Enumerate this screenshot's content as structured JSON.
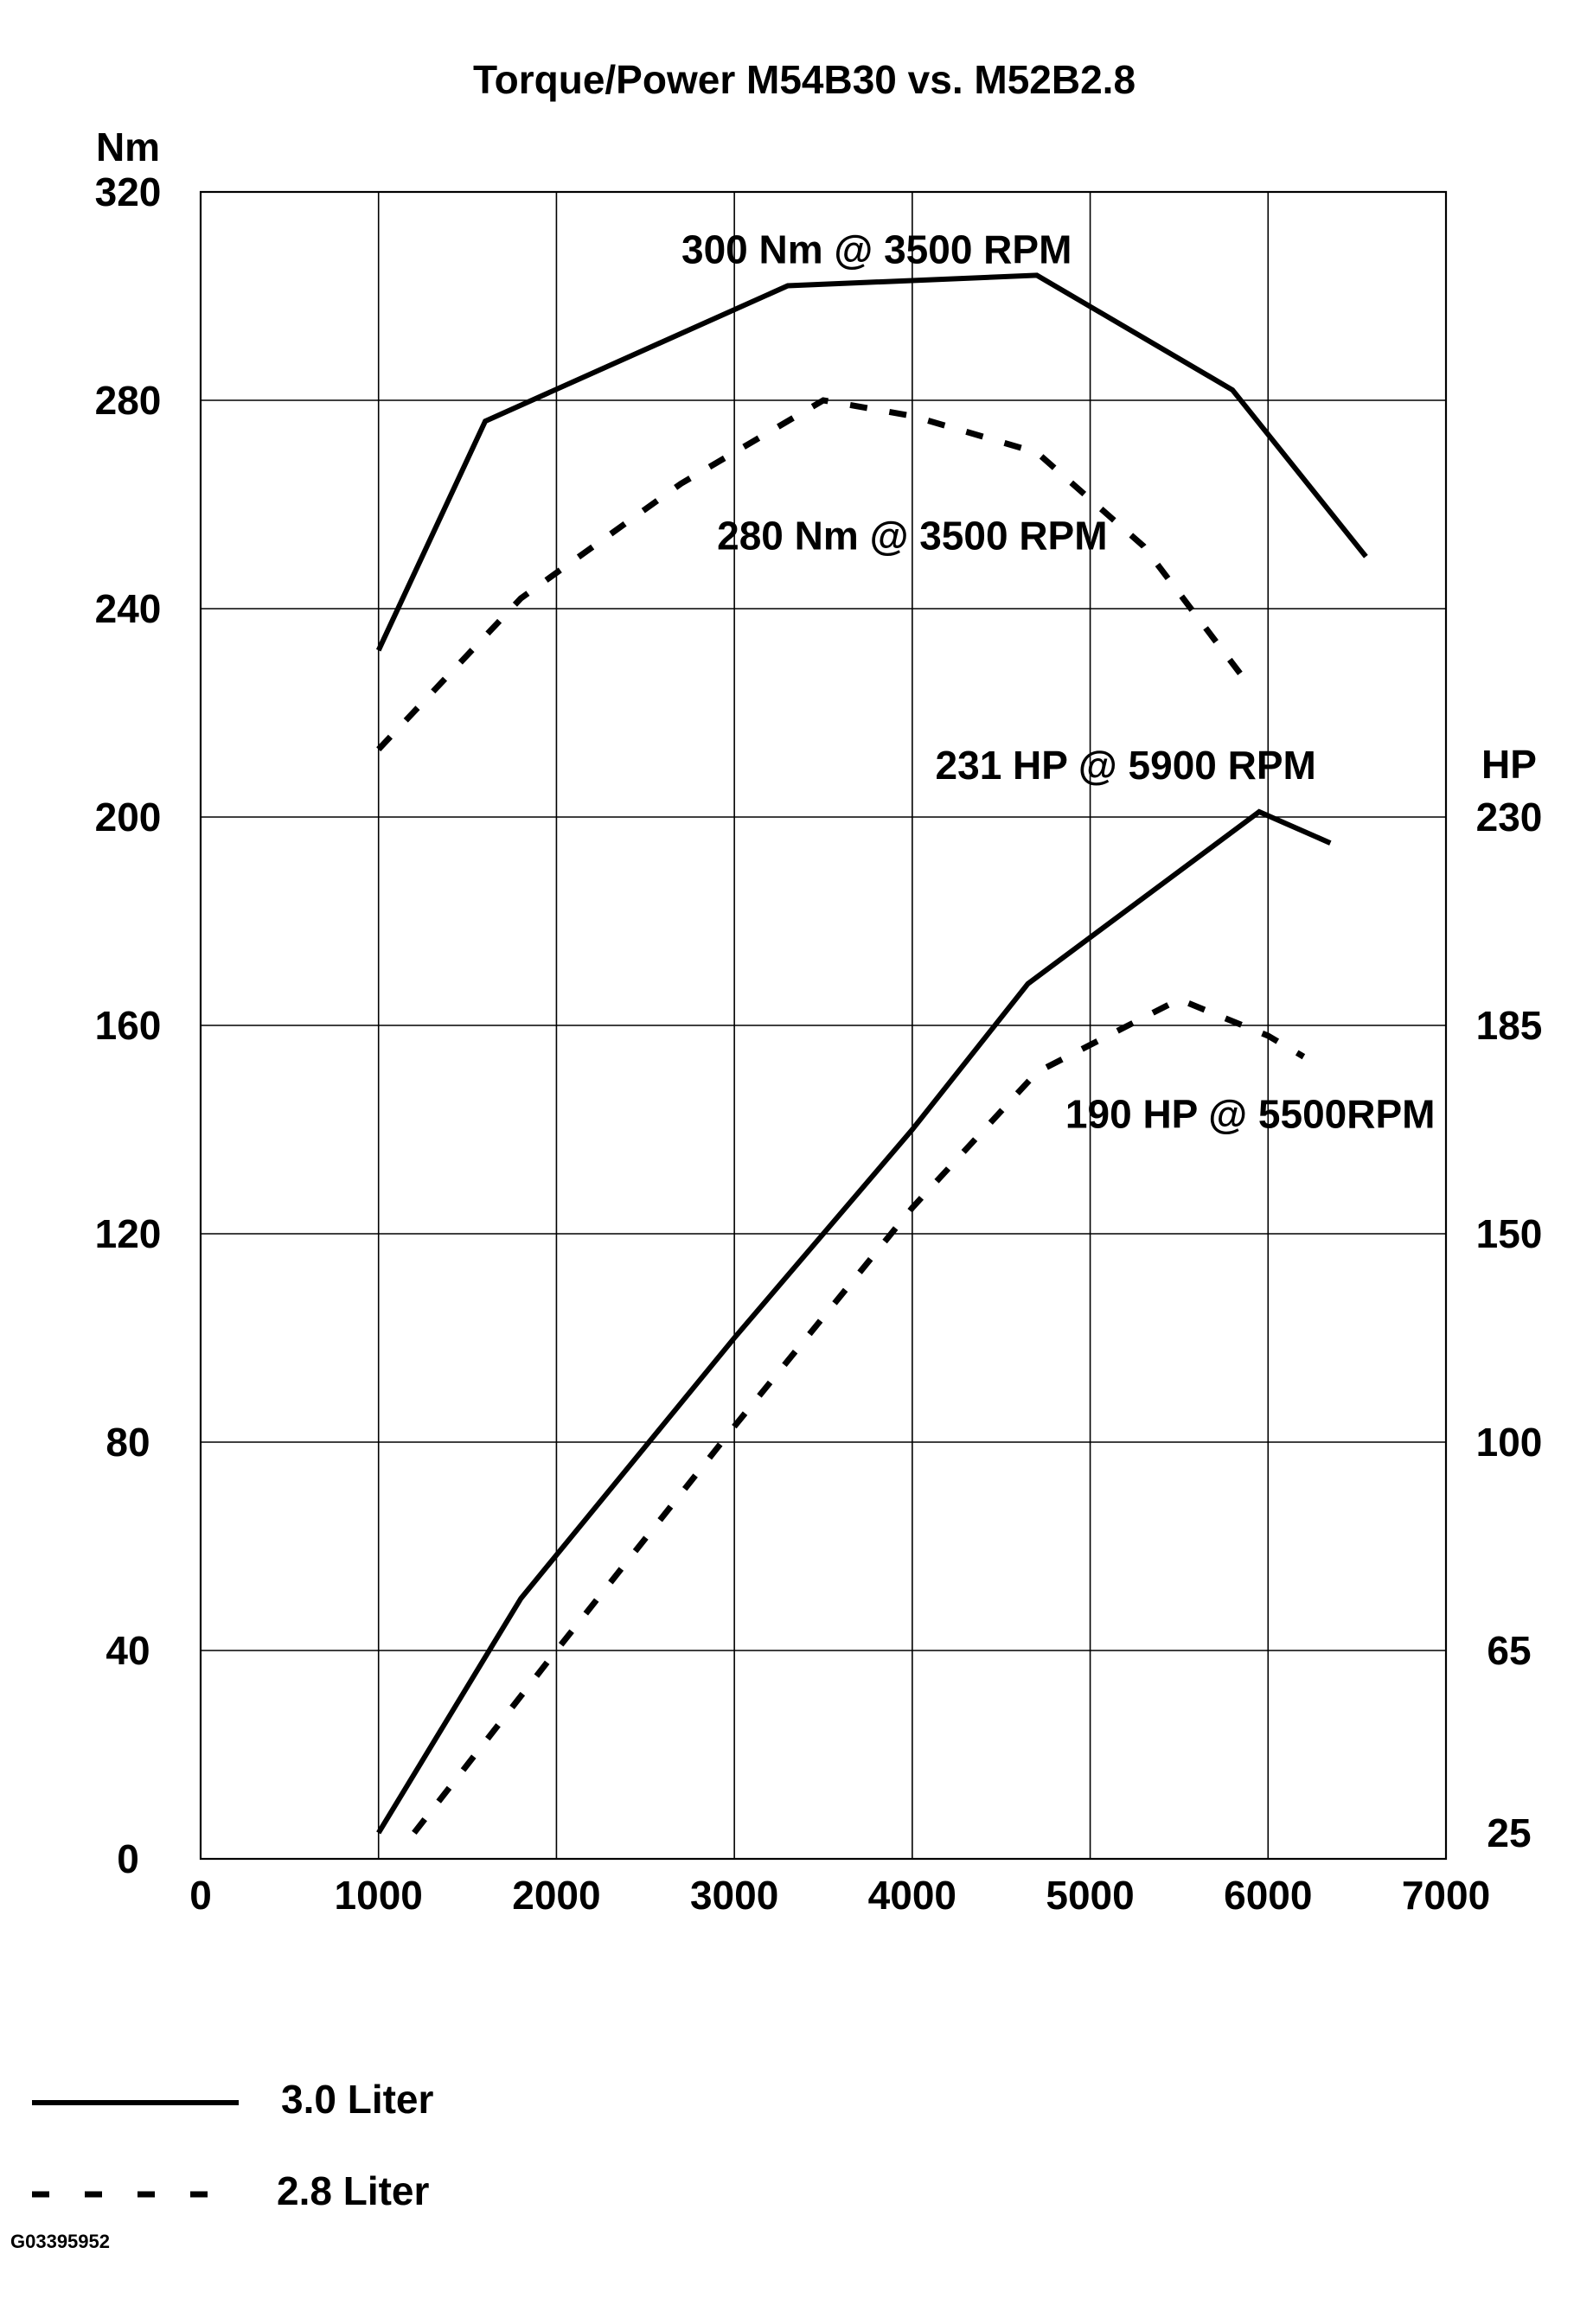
{
  "chart_data": {
    "type": "line",
    "title": "Torque/Power M54B30 vs. M52B2.8",
    "xlim": [
      0,
      7000
    ],
    "ylim": [
      0,
      320
    ],
    "x_ticks": [
      "0",
      "1000",
      "2000",
      "3000",
      "4000",
      "5000",
      "6000",
      "7000"
    ],
    "y_left_label": "Nm",
    "y_left_ticks": [
      "0",
      "40",
      "80",
      "120",
      "160",
      "200",
      "240",
      "280",
      "320"
    ],
    "y_right_label": "HP",
    "y_right_ticks": [
      {
        "label": "25",
        "at": 5
      },
      {
        "label": "65",
        "at": 40
      },
      {
        "label": "100",
        "at": 80
      },
      {
        "label": "150",
        "at": 120
      },
      {
        "label": "185",
        "at": 160
      },
      {
        "label": "230",
        "at": 200
      }
    ],
    "grid": true,
    "series": [
      {
        "name": "3.0 Liter",
        "style": "solid",
        "curve": "torque",
        "points": [
          [
            1000,
            232
          ],
          [
            1600,
            276
          ],
          [
            3300,
            302
          ],
          [
            4700,
            304
          ],
          [
            5800,
            282
          ],
          [
            6550,
            250
          ]
        ]
      },
      {
        "name": "2.8 Liter",
        "style": "dashed",
        "curve": "torque",
        "points": [
          [
            1000,
            213
          ],
          [
            1800,
            242
          ],
          [
            2700,
            264
          ],
          [
            3500,
            280
          ],
          [
            4000,
            277
          ],
          [
            4700,
            270
          ],
          [
            5300,
            252
          ],
          [
            5900,
            225
          ]
        ]
      },
      {
        "name": "3.0 Liter",
        "style": "solid",
        "curve": "power",
        "points": [
          [
            1000,
            5
          ],
          [
            1800,
            50
          ],
          [
            3000,
            100
          ],
          [
            4000,
            140
          ],
          [
            4650,
            168
          ],
          [
            5950,
            201
          ],
          [
            6350,
            195
          ]
        ]
      },
      {
        "name": "2.8 Liter",
        "style": "dashed",
        "curve": "power",
        "points": [
          [
            1200,
            5
          ],
          [
            2000,
            40
          ],
          [
            3000,
            83
          ],
          [
            4000,
            125
          ],
          [
            4700,
            151
          ],
          [
            5500,
            165
          ],
          [
            6000,
            158
          ],
          [
            6200,
            154
          ]
        ]
      }
    ],
    "annotations": [
      {
        "text": "300 Nm @ 3500 RPM",
        "x": 3800,
        "y": 309
      },
      {
        "text": "280 Nm @ 3500 RPM",
        "x": 4000,
        "y": 254
      },
      {
        "text": "231 HP @ 5900 RPM",
        "x": 5200,
        "y": 210
      },
      {
        "text": "190 HP @ 5500RPM",
        "x": 5900,
        "y": 143
      }
    ],
    "legend_position": "bottom-left",
    "legend": [
      {
        "label": "3.0 Liter",
        "style": "solid"
      },
      {
        "label": "2.8 Liter",
        "style": "dashed"
      }
    ]
  },
  "figure_id": "G03395952"
}
